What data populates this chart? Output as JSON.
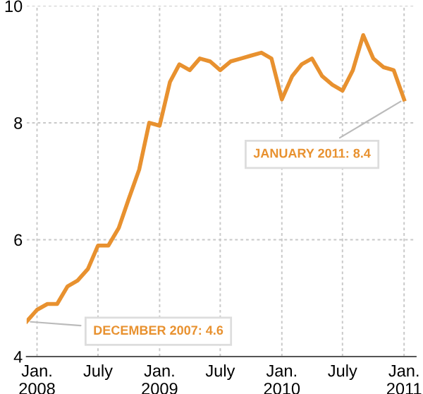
{
  "chart_data": {
    "type": "line",
    "x": [
      "2007-12",
      "2008-01",
      "2008-02",
      "2008-03",
      "2008-04",
      "2008-05",
      "2008-06",
      "2008-07",
      "2008-08",
      "2008-09",
      "2008-10",
      "2008-11",
      "2008-12",
      "2009-01",
      "2009-02",
      "2009-03",
      "2009-04",
      "2009-05",
      "2009-06",
      "2009-07",
      "2009-08",
      "2009-09",
      "2009-10",
      "2009-11",
      "2009-12",
      "2010-01",
      "2010-02",
      "2010-03",
      "2010-04",
      "2010-05",
      "2010-06",
      "2010-07",
      "2010-08",
      "2010-09",
      "2010-10",
      "2010-11",
      "2010-12",
      "2011-01"
    ],
    "series": [
      {
        "color": "#e8912f",
        "values": [
          4.6,
          4.8,
          4.9,
          4.9,
          5.2,
          5.3,
          5.5,
          5.9,
          5.9,
          6.2,
          6.7,
          7.2,
          8.0,
          7.95,
          8.7,
          9.0,
          8.9,
          9.1,
          9.05,
          8.9,
          9.05,
          9.1,
          9.15,
          9.2,
          9.1,
          8.4,
          8.8,
          9.0,
          9.1,
          8.8,
          8.65,
          8.55,
          8.9,
          9.5,
          9.1,
          8.95,
          8.9,
          8.4
        ]
      }
    ],
    "xlim": [
      "2007-12",
      "2011-02-05"
    ],
    "xticks": [
      {
        "value": "2008-01",
        "label": "Jan.\n2008"
      },
      {
        "value": "2008-07",
        "label": "July"
      },
      {
        "value": "2009-01",
        "label": "Jan.\n2009"
      },
      {
        "value": "2009-07",
        "label": "July"
      },
      {
        "value": "2010-01",
        "label": "Jan.\n2010"
      },
      {
        "value": "2010-07",
        "label": "July"
      },
      {
        "value": "2011-01",
        "label": "Jan.\n2011"
      }
    ],
    "ylim": [
      4,
      10
    ],
    "yticks": [
      4,
      6,
      8,
      10
    ],
    "grid": true,
    "marker": "none",
    "line_style": "solid",
    "legend": false,
    "annotations": [
      {
        "text": "DECEMBER 2007: 4.6",
        "x": "2007-12",
        "y": 4.6
      },
      {
        "text": "JANUARY 2011: 8.4",
        "x": "2011-01",
        "y": 8.4
      }
    ]
  }
}
